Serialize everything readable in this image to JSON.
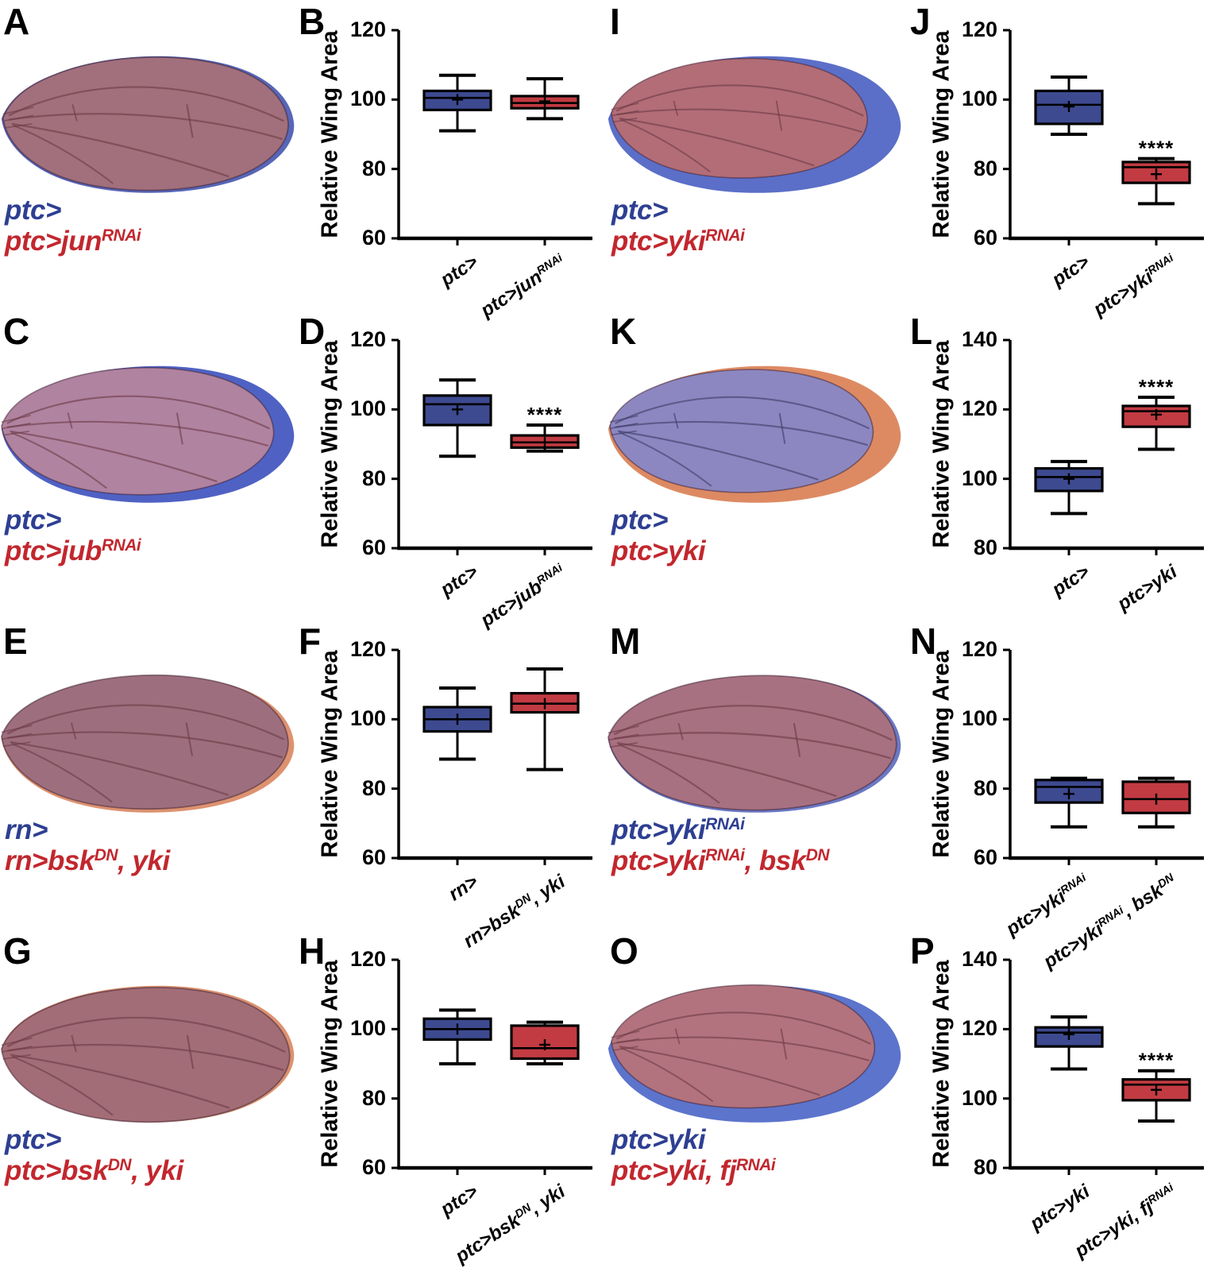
{
  "figure": {
    "ylabel": "Relative Wing Area",
    "grid_order": [
      "A",
      "B",
      "I",
      "J",
      "C",
      "D",
      "K",
      "L",
      "E",
      "F",
      "M",
      "N",
      "G",
      "H",
      "O",
      "P"
    ],
    "colors": {
      "box_blue": "#3d4a90",
      "box_red": "#c23b42",
      "label_blue": "#2e3f92",
      "label_red": "#c2272e",
      "axis": "#000000"
    },
    "wings": {
      "A": {
        "letter": "A",
        "labels": [
          {
            "color": "blue",
            "text": "ptc>"
          },
          {
            "color": "red",
            "text": "ptc>jun^{RNAi}"
          }
        ],
        "style": {
          "body": "#a1707c",
          "rim": "#5866b8",
          "vein": "#6d3a46",
          "scale": 0.975,
          "dx": 2,
          "dy": -1
        }
      },
      "C": {
        "letter": "C",
        "labels": [
          {
            "color": "blue",
            "text": "ptc>"
          },
          {
            "color": "red",
            "text": "ptc>jub^{RNAi}"
          }
        ],
        "style": {
          "body": "#b083a0",
          "rim": "#4f62c4",
          "vein": "#6d3a46",
          "scale": 0.93,
          "dx": 0,
          "dy": -4
        }
      },
      "E": {
        "letter": "E",
        "labels": [
          {
            "color": "blue",
            "text": "rn>"
          },
          {
            "color": "red",
            "text": "rn>bsk^{DN}, yki"
          }
        ],
        "style": {
          "body": "#9d6f7e",
          "rim": "#dd9270",
          "vein": "#6d3a46",
          "scale": 0.98,
          "dx": 0,
          "dy": -3
        }
      },
      "G": {
        "letter": "G",
        "labels": [
          {
            "color": "blue",
            "text": "ptc>"
          },
          {
            "color": "red",
            "text": "ptc>bsk^{DN}, yki"
          }
        ],
        "style": {
          "body": "#a26d76",
          "rim": "#dd9270",
          "vein": "#6d3a46",
          "scale": 0.985,
          "dx": 0,
          "dy": 1
        }
      },
      "I": {
        "letter": "I",
        "labels": [
          {
            "color": "blue",
            "text": "ptc>"
          },
          {
            "color": "red",
            "text": "ptc>yki^{RNAi}"
          }
        ],
        "style": {
          "body": "#b26d77",
          "rim": "#5b6fc8",
          "vein": "#6d3a46",
          "scale": 0.875,
          "dx": 4,
          "dy": -8
        }
      },
      "K": {
        "letter": "K",
        "labels": [
          {
            "color": "blue",
            "text": "ptc>"
          },
          {
            "color": "red",
            "text": "ptc>yki"
          }
        ],
        "style": {
          "body": "#8c87c0",
          "rim": "#dd8a63",
          "vein": "#3c3a66",
          "scale": 0.9,
          "dx": 2,
          "dy": -4
        }
      },
      "M": {
        "letter": "M",
        "labels": [
          {
            "color": "blue",
            "text": "ptc>yki^{RNAi}"
          },
          {
            "color": "red",
            "text": "ptc>yki^{RNAi}, bsk^{DN}"
          }
        ],
        "style": {
          "body": "#a87181",
          "rim": "#6b79c4",
          "vein": "#6d3a46",
          "scale": 0.985,
          "dx": 0,
          "dy": -2
        }
      },
      "O": {
        "letter": "O",
        "labels": [
          {
            "color": "blue",
            "text": "ptc>yki"
          },
          {
            "color": "red",
            "text": "ptc>yki, fj^{RNAi}"
          }
        ],
        "style": {
          "body": "#b2737e",
          "rim": "#5c74cc",
          "vein": "#6d3a46",
          "scale": 0.9,
          "dx": 4,
          "dy": -10
        }
      }
    }
  },
  "chart_data": [
    {
      "panel": "B",
      "type": "box",
      "title": "",
      "ylabel": "Relative Wing Area",
      "ylim": [
        60,
        120
      ],
      "yticks": [
        60,
        80,
        100,
        120
      ],
      "series": [
        {
          "name": "ptc>",
          "color": "blue",
          "whislo": 91,
          "q1": 97,
          "med": 100.5,
          "q3": 102.5,
          "whishi": 107,
          "mean": 100,
          "sig": ""
        },
        {
          "name": "ptc>jun^{RNAi}",
          "color": "red",
          "whislo": 94.5,
          "q1": 97.5,
          "med": 99,
          "q3": 101,
          "whishi": 106,
          "mean": 99.5,
          "sig": ""
        }
      ]
    },
    {
      "panel": "D",
      "type": "box",
      "title": "",
      "ylabel": "Relative Wing Area",
      "ylim": [
        60,
        120
      ],
      "yticks": [
        60,
        80,
        100,
        120
      ],
      "series": [
        {
          "name": "ptc>",
          "color": "blue",
          "whislo": 86.5,
          "q1": 95.5,
          "med": 101.5,
          "q3": 104,
          "whishi": 108.5,
          "mean": 100,
          "sig": ""
        },
        {
          "name": "ptc>jub^{RNAi}",
          "color": "red",
          "whislo": 88,
          "q1": 89,
          "med": 90.5,
          "q3": 92.5,
          "whishi": 95.5,
          "mean": 90.5,
          "sig": "****"
        }
      ]
    },
    {
      "panel": "F",
      "type": "box",
      "title": "",
      "ylabel": "Relative Wing Area",
      "ylim": [
        60,
        120
      ],
      "yticks": [
        60,
        80,
        100,
        120
      ],
      "series": [
        {
          "name": "rn>",
          "color": "blue",
          "whislo": 88.5,
          "q1": 96.5,
          "med": 100,
          "q3": 103.5,
          "whishi": 109,
          "mean": 100,
          "sig": ""
        },
        {
          "name": "rn>bsk^{DN}, yki",
          "color": "red",
          "whislo": 85.5,
          "q1": 102,
          "med": 104.5,
          "q3": 107.5,
          "whishi": 114.5,
          "mean": 104.5,
          "sig": ""
        }
      ]
    },
    {
      "panel": "H",
      "type": "box",
      "title": "",
      "ylabel": "Relative Wing Area",
      "ylim": [
        60,
        120
      ],
      "yticks": [
        60,
        80,
        100,
        120
      ],
      "series": [
        {
          "name": "ptc>",
          "color": "blue",
          "whislo": 90,
          "q1": 97,
          "med": 100,
          "q3": 103,
          "whishi": 105.5,
          "mean": 100,
          "sig": ""
        },
        {
          "name": "ptc>bsk^{DN}, yki",
          "color": "red",
          "whislo": 90,
          "q1": 91.5,
          "med": 94.5,
          "q3": 101,
          "whishi": 102,
          "mean": 95.5,
          "sig": ""
        }
      ]
    },
    {
      "panel": "J",
      "type": "box",
      "title": "",
      "ylabel": "Relative Wing Area",
      "ylim": [
        60,
        120
      ],
      "yticks": [
        60,
        80,
        100,
        120
      ],
      "series": [
        {
          "name": "ptc>",
          "color": "blue",
          "whislo": 90,
          "q1": 93,
          "med": 98.5,
          "q3": 102.5,
          "whishi": 106.5,
          "mean": 98,
          "sig": ""
        },
        {
          "name": "ptc>yki^{RNAi}",
          "color": "red",
          "whislo": 70,
          "q1": 76,
          "med": 80.5,
          "q3": 82,
          "whishi": 83,
          "mean": 78.5,
          "sig": "****"
        }
      ]
    },
    {
      "panel": "L",
      "type": "box",
      "title": "",
      "ylabel": "Relative Wing Area",
      "ylim": [
        80,
        140
      ],
      "yticks": [
        80,
        100,
        120,
        140
      ],
      "series": [
        {
          "name": "ptc>",
          "color": "blue",
          "whislo": 90,
          "q1": 96.5,
          "med": 100.5,
          "q3": 103,
          "whishi": 105,
          "mean": 100,
          "sig": ""
        },
        {
          "name": "ptc>yki",
          "color": "red",
          "whislo": 108.5,
          "q1": 115,
          "med": 119.5,
          "q3": 121,
          "whishi": 123.5,
          "mean": 118.5,
          "sig": "****"
        }
      ]
    },
    {
      "panel": "N",
      "type": "box",
      "title": "",
      "ylabel": "Relative Wing Area",
      "ylim": [
        60,
        120
      ],
      "yticks": [
        60,
        80,
        100,
        120
      ],
      "series": [
        {
          "name": "ptc>yki^{RNAi}",
          "color": "blue",
          "whislo": 69,
          "q1": 76,
          "med": 80.5,
          "q3": 82.5,
          "whishi": 83,
          "mean": 78.5,
          "sig": ""
        },
        {
          "name": "ptc>yki^{RNAi}, bsk^{DN}",
          "color": "red",
          "whislo": 69,
          "q1": 73,
          "med": 77,
          "q3": 82,
          "whishi": 83,
          "mean": 77,
          "sig": ""
        }
      ]
    },
    {
      "panel": "P",
      "type": "box",
      "title": "",
      "ylabel": "Relative Wing Area",
      "ylim": [
        80,
        140
      ],
      "yticks": [
        80,
        100,
        120,
        140
      ],
      "series": [
        {
          "name": "ptc>yki",
          "color": "blue",
          "whislo": 108.5,
          "q1": 115,
          "med": 119,
          "q3": 120.5,
          "whishi": 123.5,
          "mean": 118.5,
          "sig": ""
        },
        {
          "name": "ptc>yki, fj^{RNAi}",
          "color": "red",
          "whislo": 93.5,
          "q1": 99.5,
          "med": 104,
          "q3": 105.5,
          "whishi": 108,
          "mean": 102.5,
          "sig": "****"
        }
      ]
    }
  ]
}
